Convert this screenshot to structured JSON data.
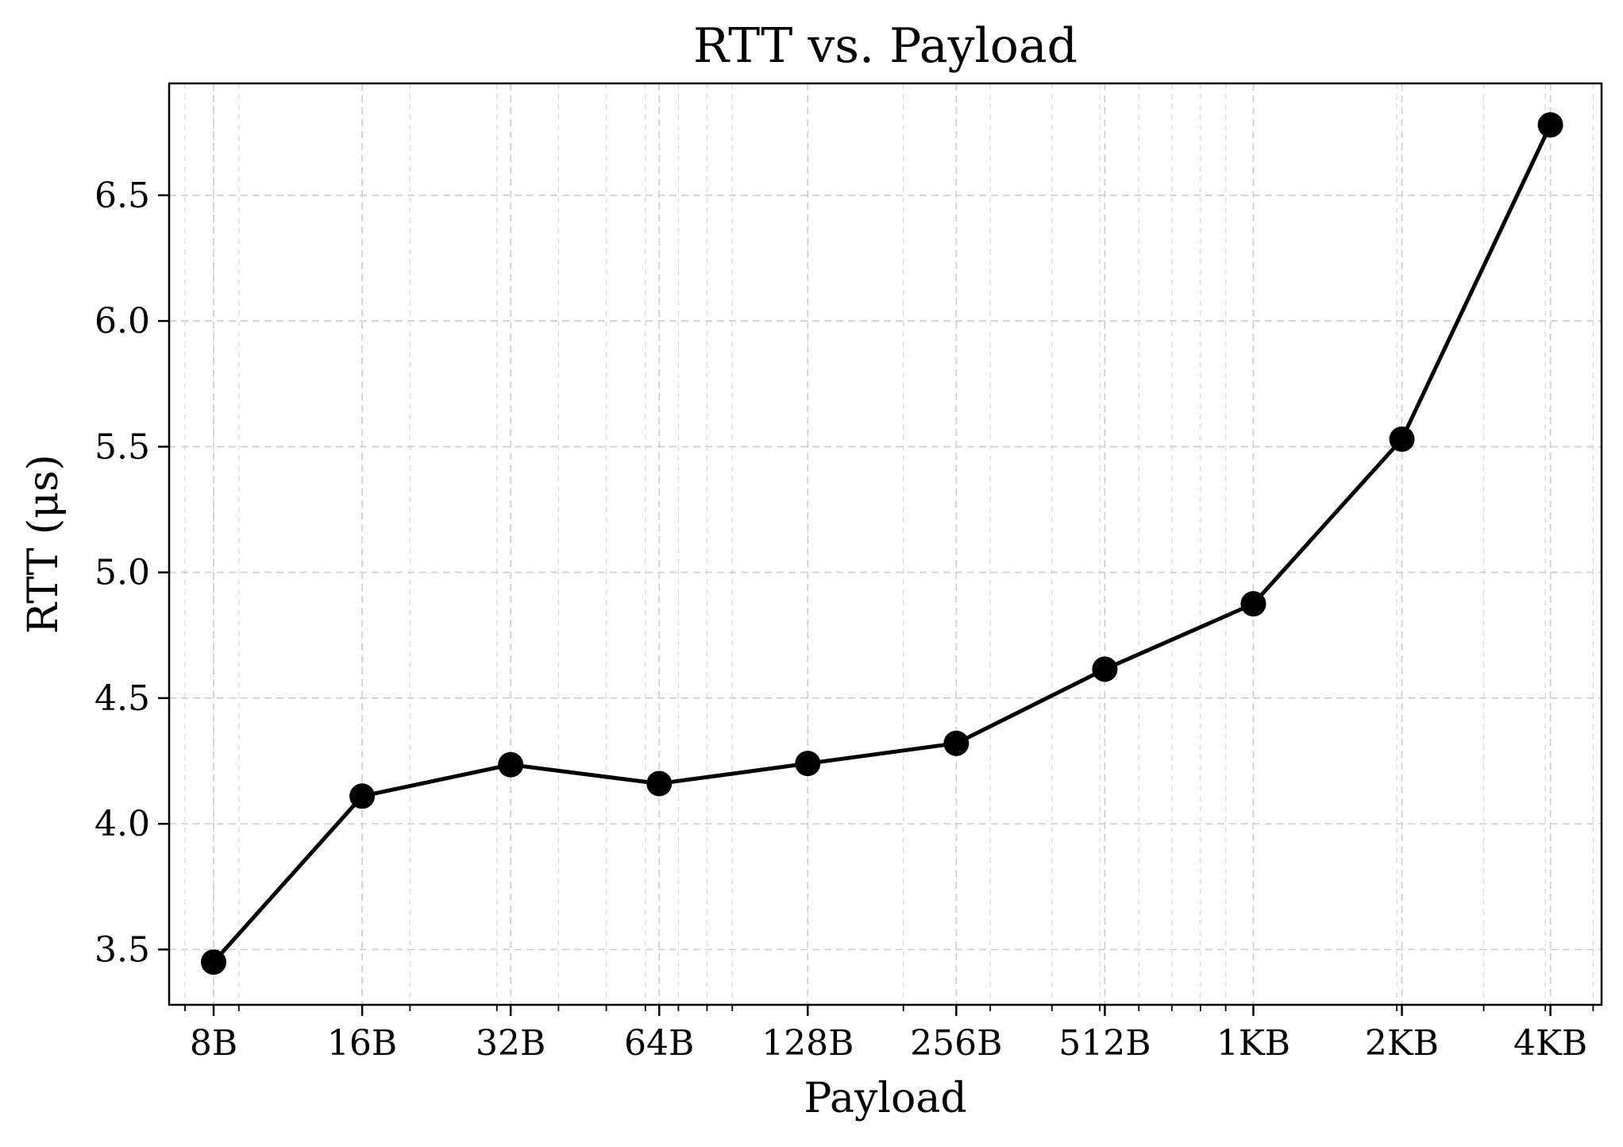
{
  "chart_data": {
    "type": "line",
    "title": "RTT vs. Payload",
    "xlabel": "Payload",
    "ylabel": "RTT (μs)",
    "x_scale": "log2",
    "x": [
      8,
      16,
      32,
      64,
      128,
      256,
      512,
      1024,
      2048,
      4096
    ],
    "x_tick_labels": [
      "8B",
      "16B",
      "32B",
      "64B",
      "128B",
      "256B",
      "512B",
      "1KB",
      "2KB",
      "4KB"
    ],
    "y": [
      3.45,
      4.11,
      4.235,
      4.16,
      4.24,
      4.32,
      4.615,
      4.875,
      5.53,
      6.78
    ],
    "y_ticks": [
      3.5,
      4.0,
      4.5,
      5.0,
      5.5,
      6.0,
      6.5
    ],
    "y_tick_labels": [
      "3.5",
      "4.0",
      "4.5",
      "5.0",
      "5.5",
      "6.0",
      "6.5"
    ],
    "xlim": [
      6.5,
      5200
    ],
    "ylim": [
      3.28,
      6.945
    ],
    "grid": true,
    "line_color": "#000000",
    "marker_color": "#000000",
    "marker": "circle"
  }
}
